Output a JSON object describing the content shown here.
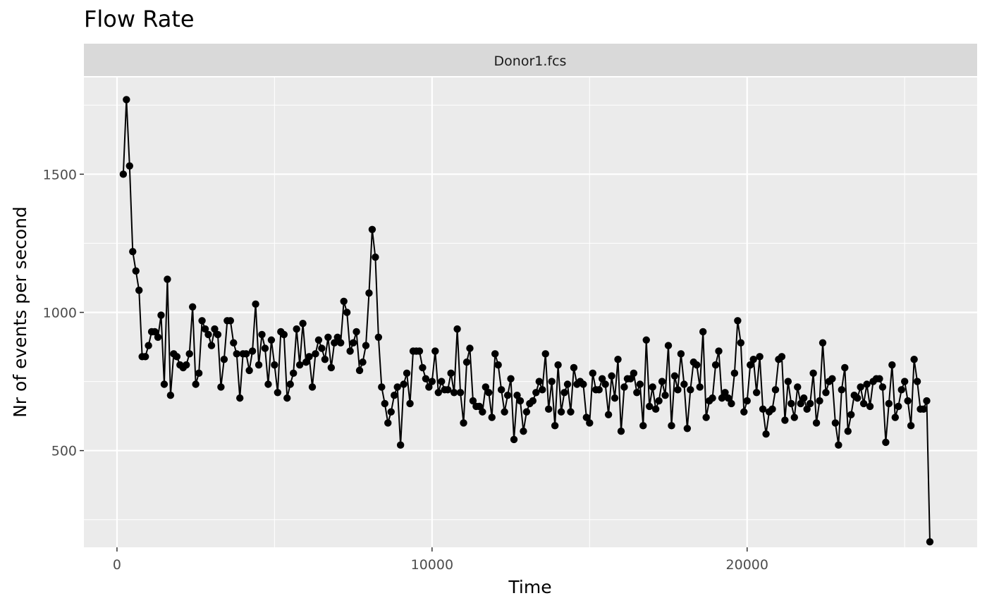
{
  "chart_data": {
    "type": "line",
    "title": "Flow Rate",
    "facet_label": "Donor1.fcs",
    "xlabel": "Time",
    "ylabel": "Nr of events per second",
    "xlim": [
      -1050,
      27300
    ],
    "ylim": [
      150,
      1850
    ],
    "x_ticks": [
      0,
      10000,
      20000
    ],
    "x_tick_labels": [
      "0",
      "10000",
      "20000"
    ],
    "y_ticks": [
      500,
      1000,
      1500
    ],
    "y_tick_labels": [
      "500",
      "1000",
      "1500"
    ],
    "grid": true,
    "colors": {
      "panel": "#ebebeb",
      "strip": "#d9d9d9",
      "grid": "#ffffff",
      "line": "#000000"
    },
    "series": [
      {
        "x": [
          200,
          300,
          400,
          500,
          600,
          700,
          800,
          900,
          1000,
          1100,
          1200,
          1300,
          1400,
          1500,
          1600,
          1700,
          1800,
          1900,
          2000,
          2100,
          2200,
          2300,
          2400,
          2500,
          2600,
          2700,
          2800,
          2900,
          3000,
          3100,
          3200,
          3300,
          3400,
          3500,
          3600,
          3700,
          3800,
          3900,
          4000,
          4100,
          4200,
          4300,
          4400,
          4500,
          4600,
          4700,
          4800,
          4900,
          5000,
          5100,
          5200,
          5300,
          5400,
          5500,
          5600,
          5700,
          5800,
          5900,
          6000,
          6100,
          6200,
          6300,
          6400,
          6500,
          6600,
          6700,
          6800,
          6900,
          7000,
          7100,
          7200,
          7300,
          7400,
          7500,
          7600,
          7700,
          7800,
          7900,
          8000,
          8100,
          8200,
          8300,
          8400,
          8500,
          8600,
          8700,
          8800,
          8900,
          9000,
          9100,
          9200,
          9300,
          9400,
          9500,
          9600,
          9700,
          9800,
          9900,
          10000,
          10100,
          10200,
          10300,
          10400,
          10500,
          10600,
          10700,
          10800,
          10900,
          11000,
          11100,
          11200,
          11300,
          11400,
          11500,
          11600,
          11700,
          11800,
          11900,
          12000,
          12100,
          12200,
          12300,
          12400,
          12500,
          12600,
          12700,
          12800,
          12900,
          13000,
          13100,
          13200,
          13300,
          13400,
          13500,
          13600,
          13700,
          13800,
          13900,
          14000,
          14100,
          14200,
          14300,
          14400,
          14500,
          14600,
          14700,
          14800,
          14900,
          15000,
          15100,
          15200,
          15300,
          15400,
          15500,
          15600,
          15700,
          15800,
          15900,
          16000,
          16100,
          16200,
          16300,
          16400,
          16500,
          16600,
          16700,
          16800,
          16900,
          17000,
          17100,
          17200,
          17300,
          17400,
          17500,
          17600,
          17700,
          17800,
          17900,
          18000,
          18100,
          18200,
          18300,
          18400,
          18500,
          18600,
          18700,
          18800,
          18900,
          19000,
          19100,
          19200,
          19300,
          19400,
          19500,
          19600,
          19700,
          19800,
          19900,
          20000,
          20100,
          20200,
          20300,
          20400,
          20500,
          20600,
          20700,
          20800,
          20900,
          21000,
          21100,
          21200,
          21300,
          21400,
          21500,
          21600,
          21700,
          21800,
          21900,
          22000,
          22100,
          22200,
          22300,
          22400,
          22500,
          22600,
          22700,
          22800,
          22900,
          23000,
          23100,
          23200,
          23300,
          23400,
          23500,
          23600,
          23700,
          23800,
          23900,
          24000,
          24100,
          24200,
          24300,
          24400,
          24500,
          24600,
          24700,
          24800,
          24900,
          25000,
          25100,
          25200,
          25300,
          25400,
          25500,
          25600,
          25700,
          25800
        ],
        "y": [
          1500,
          1770,
          1530,
          1220,
          1150,
          1080,
          840,
          840,
          880,
          930,
          930,
          910,
          990,
          740,
          1120,
          700,
          850,
          840,
          810,
          800,
          810,
          850,
          1020,
          740,
          780,
          970,
          940,
          920,
          880,
          940,
          920,
          730,
          830,
          970,
          970,
          890,
          850,
          690,
          850,
          850,
          790,
          860,
          1030,
          810,
          920,
          870,
          740,
          900,
          810,
          710,
          930,
          920,
          690,
          740,
          780,
          940,
          810,
          960,
          820,
          840,
          730,
          850,
          900,
          870,
          830,
          910,
          800,
          890,
          910,
          890,
          1040,
          1000,
          860,
          890,
          930,
          790,
          820,
          880,
          1070,
          1300,
          1200,
          910,
          730,
          670,
          600,
          640,
          700,
          730,
          520,
          740,
          780,
          670,
          860,
          860,
          860,
          800,
          760,
          730,
          750,
          860,
          710,
          750,
          720,
          720,
          780,
          710,
          940,
          710,
          600,
          820,
          870,
          680,
          660,
          660,
          640,
          730,
          710,
          620,
          850,
          810,
          720,
          640,
          700,
          760,
          540,
          700,
          680,
          570,
          640,
          670,
          680,
          710,
          750,
          720,
          850,
          650,
          750,
          590,
          810,
          640,
          710,
          740,
          640,
          800,
          740,
          750,
          740,
          620,
          600,
          780,
          720,
          720,
          760,
          740,
          630,
          770,
          690,
          830,
          570,
          730,
          760,
          760,
          780,
          710,
          740,
          590,
          900,
          660,
          730,
          650,
          680,
          750,
          700,
          880,
          590,
          770,
          720,
          850,
          740,
          580,
          720,
          820,
          810,
          730,
          930,
          620,
          680,
          690,
          810,
          860,
          690,
          710,
          690,
          670,
          780,
          970,
          890,
          640,
          680,
          810,
          830,
          710,
          840,
          650,
          560,
          640,
          650,
          720,
          830,
          840,
          610,
          750,
          670,
          620,
          730,
          670,
          690,
          650,
          670,
          780,
          600,
          680,
          890,
          710,
          750,
          760,
          600,
          520,
          720,
          800,
          570,
          630,
          700,
          690,
          730,
          670,
          740,
          660,
          750,
          760,
          760,
          730,
          530,
          670,
          810,
          620,
          660,
          720,
          750,
          680,
          590,
          830,
          750,
          650,
          650,
          680,
          170
        ]
      }
    ]
  }
}
